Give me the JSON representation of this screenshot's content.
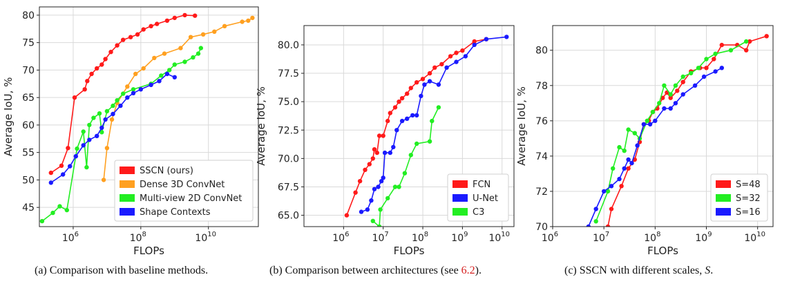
{
  "figure": {
    "captions": [
      {
        "prefix": "(a) Comparison with baseline methods.",
        "ref": "",
        "suffix": ""
      },
      {
        "prefix": "(b) Comparison between architectures (see ",
        "ref": "6.2",
        "suffix": ")."
      },
      {
        "prefix": "(c) SSCN with different scales, ",
        "ref": "",
        "math": "S",
        "suffix": "."
      }
    ]
  },
  "chart_data": [
    {
      "type": "line",
      "title": "",
      "xlabel": "FLOPs",
      "ylabel": "Average IoU, %",
      "xscale": "log",
      "xlim": [
        100000,
        300000000000
      ],
      "ylim": [
        41.5,
        81.5
      ],
      "xticks": [
        {
          "v": 1000000,
          "base": "10",
          "exp": "6"
        },
        {
          "v": 100000000,
          "base": "10",
          "exp": "8"
        },
        {
          "v": 10000000000,
          "base": "10",
          "exp": "10"
        }
      ],
      "yticks": [
        45,
        50,
        55,
        60,
        65,
        70,
        75,
        80
      ],
      "grid": true,
      "legend_position": "lower-right",
      "series": [
        {
          "name": "SSCN (ours)",
          "color": "#ff1a1a",
          "points": [
            [
              220000,
              51.3
            ],
            [
              450000,
              52.6
            ],
            [
              700000,
              55.8
            ],
            [
              1100000,
              65
            ],
            [
              2200000,
              66.5
            ],
            [
              2600000,
              68
            ],
            [
              3500000,
              69.3
            ],
            [
              5000000,
              70.3
            ],
            [
              7000000,
              71
            ],
            [
              9000000,
              72
            ],
            [
              13000000,
              73.3
            ],
            [
              20000000,
              74.5
            ],
            [
              30000000,
              75.5
            ],
            [
              50000000,
              76
            ],
            [
              80000000,
              76.5
            ],
            [
              120000000,
              77.4
            ],
            [
              200000000,
              78
            ],
            [
              300000000,
              78.4
            ],
            [
              600000000,
              79
            ],
            [
              1000000000,
              79.5
            ],
            [
              2000000000,
              80
            ],
            [
              4000000000,
              79.9
            ]
          ]
        },
        {
          "name": "Dense 3D ConvNet",
          "color": "#ffa020",
          "points": [
            [
              8000000,
              50
            ],
            [
              10000000,
              55.8
            ],
            [
              14000000,
              61
            ],
            [
              20000000,
              64
            ],
            [
              40000000,
              67
            ],
            [
              70000000,
              69.3
            ],
            [
              120000000,
              70.3
            ],
            [
              250000000,
              72.2
            ],
            [
              500000000,
              73
            ],
            [
              1500000000,
              74
            ],
            [
              3000000000,
              76
            ],
            [
              7000000000,
              76.5
            ],
            [
              15000000000,
              77
            ],
            [
              30000000000,
              78
            ],
            [
              100000000000,
              78.8
            ],
            [
              150000000000,
              79
            ],
            [
              200000000000,
              79.5
            ]
          ]
        },
        {
          "name": "Multi-view 2D ConvNet",
          "color": "#22ee22",
          "points": [
            [
              120000,
              42.5
            ],
            [
              250000,
              44
            ],
            [
              400000,
              45.2
            ],
            [
              650000,
              44.5
            ],
            [
              1300000,
              55.7
            ],
            [
              2000000,
              58.8
            ],
            [
              2500000,
              52.3
            ],
            [
              3000000,
              60
            ],
            [
              4000000,
              61.3
            ],
            [
              6000000,
              62.1
            ],
            [
              7000000,
              58.7
            ],
            [
              10000000,
              62.5
            ],
            [
              15000000,
              63.5
            ],
            [
              20000000,
              64.5
            ],
            [
              30000000,
              65.7
            ],
            [
              60000000,
              66.5
            ],
            [
              200000000,
              67.5
            ],
            [
              400000000,
              69
            ],
            [
              700000000,
              70
            ],
            [
              1000000000,
              71
            ],
            [
              2000000000,
              71.5
            ],
            [
              3500000000,
              72.3
            ],
            [
              5000000000,
              73
            ],
            [
              6000000000,
              74
            ]
          ]
        },
        {
          "name": "Shape Contexts",
          "color": "#1a1aff",
          "points": [
            [
              220000,
              49.5
            ],
            [
              500000,
              51
            ],
            [
              800000,
              52.5
            ],
            [
              1200000,
              54.3
            ],
            [
              2000000,
              56.3
            ],
            [
              3000000,
              57.3
            ],
            [
              5000000,
              58
            ],
            [
              7000000,
              59.5
            ],
            [
              9000000,
              61
            ],
            [
              15000000,
              62
            ],
            [
              25000000,
              63.5
            ],
            [
              40000000,
              65
            ],
            [
              60000000,
              65.8
            ],
            [
              100000000,
              66.5
            ],
            [
              200000000,
              67.3
            ],
            [
              350000000,
              68
            ],
            [
              600000000,
              69.3
            ],
            [
              1000000000,
              68.7
            ]
          ]
        }
      ]
    },
    {
      "type": "line",
      "title": "",
      "xlabel": "FLOPs",
      "ylabel": "Average IoU, %",
      "xscale": "log",
      "xlim": [
        100000,
        20000000000
      ],
      "ylim": [
        64,
        81.7
      ],
      "xticks": [
        {
          "v": 1000000,
          "base": "10",
          "exp": "6"
        },
        {
          "v": 10000000,
          "base": "10",
          "exp": "7"
        },
        {
          "v": 100000000,
          "base": "10",
          "exp": "8"
        },
        {
          "v": 1000000000,
          "base": "10",
          "exp": "9"
        },
        {
          "v": 10000000000,
          "base": "10",
          "exp": "10"
        }
      ],
      "yticks": [
        65.0,
        67.5,
        70.0,
        72.5,
        75.0,
        77.5,
        80.0
      ],
      "ytick_decimals": 1,
      "grid": true,
      "legend_position": "lower-right",
      "series": [
        {
          "name": "FCN",
          "color": "#ff1a1a",
          "points": [
            [
              1200000,
              65
            ],
            [
              2000000,
              67
            ],
            [
              2600000,
              68
            ],
            [
              3500000,
              69
            ],
            [
              4500000,
              69.5
            ],
            [
              5500000,
              70
            ],
            [
              6000000,
              70.8
            ],
            [
              7000000,
              70.5
            ],
            [
              8000000,
              72
            ],
            [
              10000000,
              72
            ],
            [
              13000000,
              73.3
            ],
            [
              15000000,
              74
            ],
            [
              20000000,
              74.5
            ],
            [
              25000000,
              75
            ],
            [
              30000000,
              75.3
            ],
            [
              40000000,
              75.7
            ],
            [
              50000000,
              76.2
            ],
            [
              70000000,
              76.7
            ],
            [
              100000000,
              77
            ],
            [
              150000000,
              77.5
            ],
            [
              200000000,
              78
            ],
            [
              300000000,
              78.3
            ],
            [
              500000000,
              79
            ],
            [
              700000000,
              79.3
            ],
            [
              1000000000,
              79.5
            ],
            [
              2000000000,
              80.3
            ],
            [
              4000000000,
              80.5
            ]
          ]
        },
        {
          "name": "U-Net",
          "color": "#1a1aff",
          "points": [
            [
              2800000,
              65.3
            ],
            [
              4000000,
              65.5
            ],
            [
              5000000,
              66.3
            ],
            [
              6000000,
              67.3
            ],
            [
              7500000,
              67.5
            ],
            [
              9000000,
              68
            ],
            [
              10000000,
              68.3
            ],
            [
              11000000,
              70.5
            ],
            [
              15000000,
              70.5
            ],
            [
              18000000,
              71
            ],
            [
              22000000,
              72.5
            ],
            [
              30000000,
              73.3
            ],
            [
              40000000,
              73.5
            ],
            [
              55000000,
              73.8
            ],
            [
              70000000,
              73.8
            ],
            [
              90000000,
              75.5
            ],
            [
              110000000,
              76.5
            ],
            [
              150000000,
              76.8
            ],
            [
              250000000,
              76.5
            ],
            [
              400000000,
              78
            ],
            [
              700000000,
              78.5
            ],
            [
              1200000000,
              79
            ],
            [
              2000000000,
              80
            ],
            [
              4000000000,
              80.5
            ],
            [
              13000000000,
              80.7
            ]
          ]
        },
        {
          "name": "C3",
          "color": "#22ee22",
          "points": [
            [
              5500000,
              64.5
            ],
            [
              8000000,
              64
            ],
            [
              8500000,
              65.5
            ],
            [
              13000000,
              66.5
            ],
            [
              20000000,
              67.5
            ],
            [
              25000000,
              67.5
            ],
            [
              35000000,
              68.7
            ],
            [
              50000000,
              70.3
            ],
            [
              70000000,
              71.3
            ],
            [
              150000000,
              71.5
            ],
            [
              170000000,
              73.3
            ],
            [
              250000000,
              74.5
            ]
          ]
        }
      ]
    },
    {
      "type": "line",
      "title": "",
      "xlabel": "FLOPs",
      "ylabel": "Average IoU, %",
      "xscale": "log",
      "xlim": [
        1000000,
        20000000000
      ],
      "ylim": [
        70,
        81.4
      ],
      "xticks": [
        {
          "v": 1000000,
          "base": "10",
          "exp": "6"
        },
        {
          "v": 10000000,
          "base": "10",
          "exp": "7"
        },
        {
          "v": 100000000,
          "base": "10",
          "exp": "8"
        },
        {
          "v": 1000000000,
          "base": "10",
          "exp": "9"
        },
        {
          "v": 10000000000,
          "base": "10",
          "exp": "10"
        }
      ],
      "yticks": [
        70,
        72,
        74,
        76,
        78,
        80
      ],
      "grid": true,
      "legend_position": "lower-right",
      "series": [
        {
          "name": "S=48",
          "color": "#ff1a1a",
          "points": [
            [
              12000000,
              70
            ],
            [
              14000000,
              71
            ],
            [
              22000000,
              72.3
            ],
            [
              30000000,
              73.3
            ],
            [
              40000000,
              73.8
            ],
            [
              50000000,
              74.8
            ],
            [
              60000000,
              75.8
            ],
            [
              75000000,
              76
            ],
            [
              90000000,
              76.5
            ],
            [
              110000000,
              76.7
            ],
            [
              140000000,
              77.3
            ],
            [
              170000000,
              77.6
            ],
            [
              200000000,
              77.3
            ],
            [
              270000000,
              77.7
            ],
            [
              350000000,
              78.2
            ],
            [
              500000000,
              78.8
            ],
            [
              750000000,
              79
            ],
            [
              1000000000,
              79
            ],
            [
              1400000000,
              79.5
            ],
            [
              2000000000,
              80.3
            ],
            [
              4000000000,
              80.3
            ],
            [
              6000000000,
              80
            ],
            [
              7000000000,
              80.5
            ],
            [
              15000000000,
              80.8
            ]
          ]
        },
        {
          "name": "S=32",
          "color": "#22ee22",
          "points": [
            [
              7000000,
              70.3
            ],
            [
              12000000,
              72
            ],
            [
              15000000,
              73.3
            ],
            [
              20000000,
              74.5
            ],
            [
              25000000,
              74.3
            ],
            [
              30000000,
              75.5
            ],
            [
              40000000,
              75.3
            ],
            [
              50000000,
              75
            ],
            [
              70000000,
              76
            ],
            [
              90000000,
              76.5
            ],
            [
              120000000,
              77
            ],
            [
              150000000,
              78
            ],
            [
              200000000,
              77.5
            ],
            [
              250000000,
              78
            ],
            [
              350000000,
              78.5
            ],
            [
              500000000,
              78.7
            ],
            [
              700000000,
              79
            ],
            [
              1000000000,
              79.5
            ],
            [
              1500000000,
              79.8
            ],
            [
              3000000000,
              80
            ],
            [
              6000000000,
              80.5
            ]
          ]
        },
        {
          "name": "S=16",
          "color": "#1a1aff",
          "points": [
            [
              5000000,
              70
            ],
            [
              7000000,
              71
            ],
            [
              10000000,
              72
            ],
            [
              14000000,
              72.3
            ],
            [
              20000000,
              72.7
            ],
            [
              25000000,
              73.3
            ],
            [
              30000000,
              73.8
            ],
            [
              35000000,
              73.6
            ],
            [
              45000000,
              74.6
            ],
            [
              60000000,
              75.8
            ],
            [
              80000000,
              75.8
            ],
            [
              100000000,
              76
            ],
            [
              150000000,
              76.7
            ],
            [
              200000000,
              76.7
            ],
            [
              250000000,
              77
            ],
            [
              350000000,
              77.5
            ],
            [
              600000000,
              78
            ],
            [
              900000000,
              78.5
            ],
            [
              1500000000,
              78.8
            ],
            [
              2000000000,
              79
            ]
          ]
        }
      ]
    }
  ]
}
